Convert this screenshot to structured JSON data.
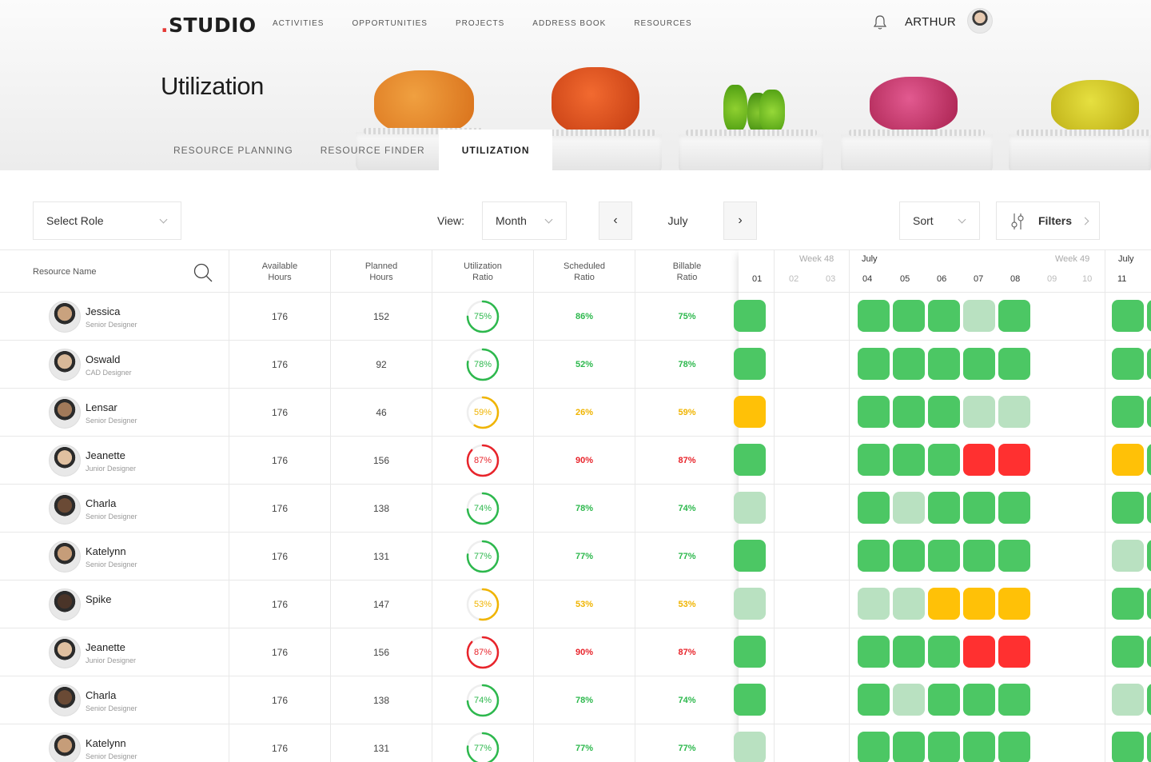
{
  "app": {
    "logo": "STUDIO",
    "logo_dot": "."
  },
  "nav": [
    "ACTIVITIES",
    "OPPORTUNITIES",
    "PROJECTS",
    "ADDRESS BOOK",
    "RESOURCES"
  ],
  "user": {
    "name": "ARTHUR"
  },
  "page": {
    "title": "Utilization"
  },
  "tabs": [
    {
      "label": "RESOURCE PLANNING",
      "active": false
    },
    {
      "label": "RESOURCE FINDER",
      "active": false
    },
    {
      "label": "UTILIZATION",
      "active": true
    }
  ],
  "toolbar": {
    "role_select": "Select Role",
    "view_label": "View:",
    "view_value": "Month",
    "period": "July",
    "sort": "Sort",
    "filters": "Filters"
  },
  "columns": {
    "resource": "Resource Name",
    "available": [
      "Available",
      "Hours"
    ],
    "planned": [
      "Planned",
      "Hours"
    ],
    "utilization": [
      "Utilization",
      "Ratio"
    ],
    "scheduled": [
      "Scheduled",
      "Ratio"
    ],
    "billable": [
      "Billable",
      "Ratio"
    ]
  },
  "calendar": {
    "week48": "Week 48",
    "week49": "Week 49",
    "month_a": "July",
    "month_b": "July",
    "days": [
      "01",
      "02",
      "03",
      "04",
      "05",
      "06",
      "07",
      "08",
      "09",
      "10",
      "11"
    ]
  },
  "colors": {
    "green": "#4cc764",
    "light": "#b9e1c1",
    "amber": "#ffc107",
    "red": "#ff3030",
    "text_green": "#2db84d",
    "text_amber": "#f0b400",
    "text_red": "#e8242b"
  },
  "rows": [
    {
      "name": "Jessica",
      "role": "Senior Designer",
      "available": "176",
      "planned": "152",
      "util": "75%",
      "util_v": 0.75,
      "sched": "86%",
      "bill": "75%",
      "status": "green",
      "cells": [
        "g",
        "g",
        "g",
        "g",
        "l",
        "g",
        "g",
        "g"
      ]
    },
    {
      "name": "Oswald",
      "role": "CAD Designer",
      "available": "176",
      "planned": "92",
      "util": "78%",
      "util_v": 0.78,
      "sched": "52%",
      "bill": "78%",
      "status": "green",
      "cells": [
        "g",
        "g",
        "g",
        "g",
        "g",
        "g",
        "g",
        "g"
      ]
    },
    {
      "name": "Lensar",
      "role": "Senior Designer",
      "available": "176",
      "planned": "46",
      "util": "59%",
      "util_v": 0.59,
      "sched": "26%",
      "bill": "59%",
      "status": "amber",
      "cells": [
        "a",
        "g",
        "g",
        "g",
        "l",
        "l",
        "g",
        "g"
      ]
    },
    {
      "name": "Jeanette",
      "role": "Junior Designer",
      "available": "176",
      "planned": "156",
      "util": "87%",
      "util_v": 0.87,
      "sched": "90%",
      "bill": "87%",
      "status": "red",
      "cells": [
        "g",
        "g",
        "g",
        "g",
        "r",
        "r",
        "a",
        "g"
      ]
    },
    {
      "name": "Charla",
      "role": "Senior Designer",
      "available": "176",
      "planned": "138",
      "util": "74%",
      "util_v": 0.74,
      "sched": "78%",
      "bill": "74%",
      "status": "green",
      "cells": [
        "l",
        "g",
        "l",
        "g",
        "g",
        "g",
        "g",
        "g"
      ]
    },
    {
      "name": "Katelynn",
      "role": "Senior Designer",
      "available": "176",
      "planned": "131",
      "util": "77%",
      "util_v": 0.77,
      "sched": "77%",
      "bill": "77%",
      "status": "green",
      "cells": [
        "g",
        "g",
        "g",
        "g",
        "g",
        "g",
        "l",
        "g"
      ]
    },
    {
      "name": "Spike",
      "role": "",
      "available": "176",
      "planned": "147",
      "util": "53%",
      "util_v": 0.53,
      "sched": "53%",
      "bill": "53%",
      "status": "amber",
      "cells": [
        "l",
        "l",
        "l",
        "a",
        "a",
        "a",
        "g",
        "g"
      ]
    },
    {
      "name": "Jeanette",
      "role": "Junior Designer",
      "available": "176",
      "planned": "156",
      "util": "87%",
      "util_v": 0.87,
      "sched": "90%",
      "bill": "87%",
      "status": "red",
      "cells": [
        "g",
        "g",
        "g",
        "g",
        "r",
        "r",
        "g",
        "g"
      ]
    },
    {
      "name": "Charla",
      "role": "Senior Designer",
      "available": "176",
      "planned": "138",
      "util": "74%",
      "util_v": 0.74,
      "sched": "78%",
      "bill": "74%",
      "status": "green",
      "cells": [
        "g",
        "g",
        "l",
        "g",
        "g",
        "g",
        "l",
        "g"
      ]
    },
    {
      "name": "Katelynn",
      "role": "Senior Designer",
      "available": "176",
      "planned": "131",
      "util": "77%",
      "util_v": 0.77,
      "sched": "77%",
      "bill": "77%",
      "status": "green",
      "cells": [
        "l",
        "g",
        "g",
        "g",
        "g",
        "g",
        "g",
        "g"
      ]
    }
  ]
}
